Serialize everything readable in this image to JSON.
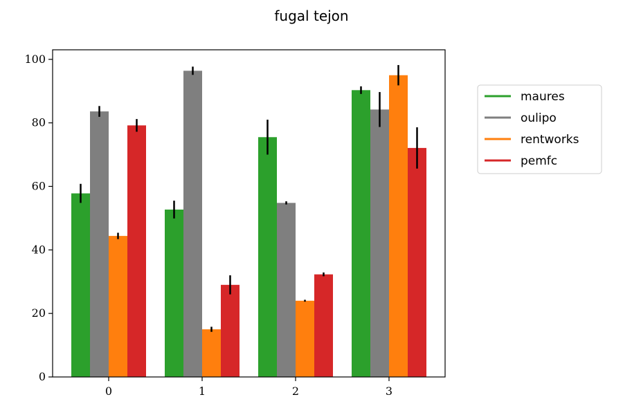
{
  "chart_data": {
    "type": "bar",
    "title": "fugal tejon",
    "xlabel": "",
    "ylabel": "",
    "categories": [
      "0",
      "1",
      "2",
      "3"
    ],
    "ylim": [
      0,
      103
    ],
    "yticks": [
      0,
      20,
      40,
      60,
      80,
      100
    ],
    "grid": false,
    "legend_position": "right",
    "series": [
      {
        "name": "maures",
        "color": "#2ca02c",
        "values": [
          57.8,
          52.7,
          75.5,
          90.3
        ],
        "errors": [
          3.0,
          2.8,
          5.5,
          1.2
        ]
      },
      {
        "name": "oulipo",
        "color": "#7f7f7f",
        "values": [
          83.6,
          96.4,
          54.8,
          84.2
        ],
        "errors": [
          1.7,
          1.3,
          0.5,
          5.5
        ]
      },
      {
        "name": "rentworks",
        "color": "#ff7f0e",
        "values": [
          44.4,
          15.0,
          24.0,
          95.0
        ],
        "errors": [
          1.0,
          0.8,
          0.3,
          3.2
        ]
      },
      {
        "name": "pemfc",
        "color": "#d62728",
        "values": [
          79.2,
          29.0,
          32.3,
          72.1
        ],
        "errors": [
          2.0,
          3.0,
          0.6,
          6.5
        ]
      }
    ]
  }
}
